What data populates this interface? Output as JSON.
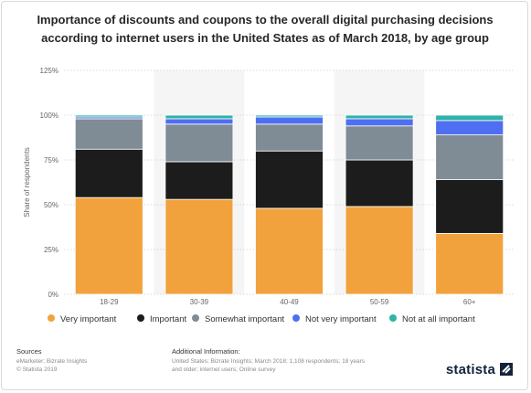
{
  "title": "Importance of discounts and coupons to the overall digital purchasing decisions according to internet users in the United States as of March 2018, by age group",
  "chart_data": {
    "type": "bar",
    "stacked": true,
    "categories": [
      "18-29",
      "30-39",
      "40-49",
      "50-59",
      "60+"
    ],
    "series": [
      {
        "name": "Very important",
        "color": "#f2a23c",
        "values": [
          54,
          53,
          48,
          49,
          34
        ]
      },
      {
        "name": "Important",
        "color": "#1c1c1c",
        "values": [
          27,
          21,
          32,
          26,
          30
        ]
      },
      {
        "name": "Somewhat important",
        "color": "#7f8c96",
        "values": [
          17,
          21,
          15,
          19,
          25
        ]
      },
      {
        "name": "Not very important",
        "color": "#4f6ff2",
        "values": [
          1,
          3,
          4,
          4,
          8
        ]
      },
      {
        "name": "Not at all important",
        "color": "#2eb3a6",
        "values": [
          1,
          2,
          1,
          2,
          3
        ]
      }
    ],
    "ylabel": "Share of respondents",
    "ylim": [
      0,
      125
    ],
    "yticks": [
      "0%",
      "25%",
      "50%",
      "75%",
      "100%",
      "125%"
    ],
    "grid": true,
    "legend_position": "bottom"
  },
  "footer": {
    "sources_heading": "Sources",
    "sources_lines": [
      "eMarketer; Bizrate Insights",
      "© Statista 2019"
    ],
    "additional_heading": "Additional Information:",
    "additional_text": "United States; Bizrate Insights; March 2018; 1,108 respondents; 18 years and older; internet users; Online survey"
  },
  "brand": "statista"
}
